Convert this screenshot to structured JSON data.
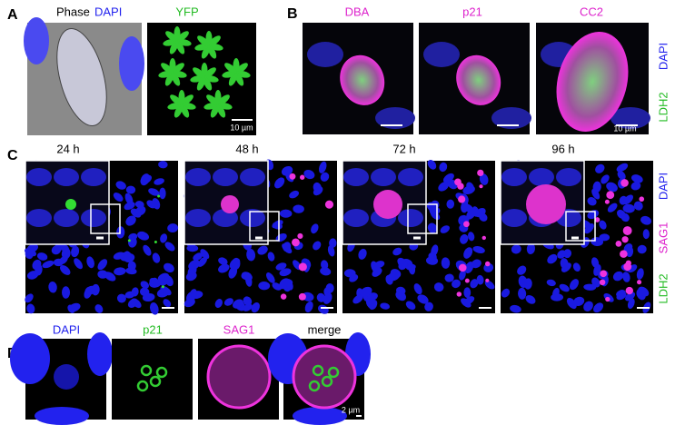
{
  "panel_a": {
    "label": "A",
    "phase_title": "Phase",
    "dapi_title": "DAPI",
    "yfp_title": "YFP",
    "scale_bar": "10 µm"
  },
  "panel_b": {
    "label": "B",
    "titles": [
      "DBA",
      "p21",
      "CC2"
    ],
    "side_labels": [
      "DAPI",
      "LDH2"
    ],
    "scale_bar": "10 µm"
  },
  "panel_c": {
    "label": "C",
    "titles": [
      "24 h",
      "48 h",
      "72 h",
      "96 h"
    ],
    "side_labels": [
      "DAPI",
      "SAG1",
      "LDH2"
    ]
  },
  "panel_d": {
    "label": "D",
    "titles": [
      "DAPI",
      "p21",
      "SAG1",
      "merge"
    ],
    "scale_bar": "2 µm"
  }
}
